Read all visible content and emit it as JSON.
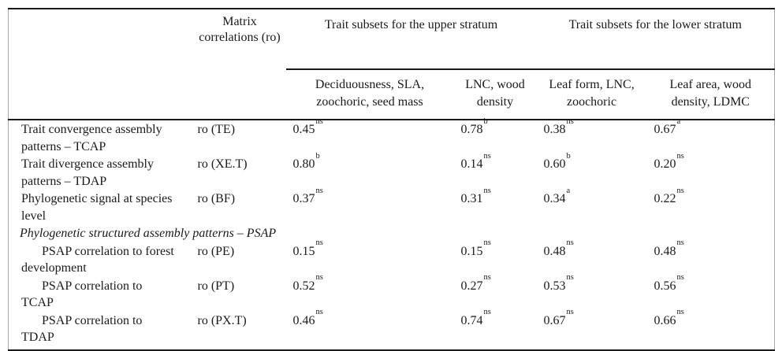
{
  "table": {
    "header": {
      "matrix_correlations": "Matrix correlations (ro)",
      "group_upper": "Trait subsets for the upper stratum",
      "group_lower": "Trait subsets for the lower stratum",
      "subcolumns": [
        {
          "line1": "Deciduousness, SLA,",
          "line2": "zoochoric, seed mass"
        },
        {
          "line1": "LNC, wood",
          "line2": "density"
        },
        {
          "line1": "Leaf form, LNC,",
          "line2": "zoochoric"
        },
        {
          "line1": "Leaf area, wood",
          "line2": "density, LDMC"
        }
      ]
    },
    "section_header": "Phylogenetic structured assembly patterns – PSAP",
    "rows": [
      {
        "label1": "Trait convergence assembly",
        "label2": "patterns – TCAP",
        "ro": "ro (TE)",
        "values": [
          {
            "v": "0.45",
            "s": "ns"
          },
          {
            "v": "0.78",
            "s": "b"
          },
          {
            "v": "0.38",
            "s": "ns"
          },
          {
            "v": "0.67",
            "s": "a"
          }
        ]
      },
      {
        "label1": "Trait divergence assembly",
        "label2": "patterns – TDAP",
        "ro": "ro (XE.T)",
        "values": [
          {
            "v": "0.80",
            "s": "b"
          },
          {
            "v": "0.14",
            "s": "ns"
          },
          {
            "v": "0.60",
            "s": "b"
          },
          {
            "v": "0.20",
            "s": "ns"
          }
        ]
      },
      {
        "label1": "Phylogenetic signal at species",
        "label2": "level",
        "ro": "ro (BF)",
        "values": [
          {
            "v": "0.37",
            "s": "ns"
          },
          {
            "v": "0.31",
            "s": "ns"
          },
          {
            "v": "0.34",
            "s": "a"
          },
          {
            "v": "0.22",
            "s": "ns"
          }
        ]
      },
      {
        "label1": "PSAP correlation to forest",
        "label2": "development",
        "ro": "ro (PE)",
        "values": [
          {
            "v": "0.15",
            "s": "ns"
          },
          {
            "v": "0.15",
            "s": "ns"
          },
          {
            "v": "0.48",
            "s": "ns"
          },
          {
            "v": "0.48",
            "s": "ns"
          }
        ]
      },
      {
        "label1": "PSAP correlation to",
        "label2": "TCAP",
        "ro": "ro (PT)",
        "values": [
          {
            "v": "0.52",
            "s": "ns"
          },
          {
            "v": "0.27",
            "s": "ns"
          },
          {
            "v": "0.53",
            "s": "ns"
          },
          {
            "v": "0.56",
            "s": "ns"
          }
        ]
      },
      {
        "label1": "PSAP correlation to",
        "label2": "TDAP",
        "ro": "ro (PX.T)",
        "values": [
          {
            "v": "0.46",
            "s": "ns"
          },
          {
            "v": "0.74",
            "s": "ns"
          },
          {
            "v": "0.67",
            "s": "ns"
          },
          {
            "v": "0.66",
            "s": "ns"
          }
        ]
      }
    ],
    "colors": {
      "text": "#1a1a1a",
      "rule": "#1a1a1a",
      "side_border": "#a9a9a9",
      "background": "#ffffff"
    }
  }
}
